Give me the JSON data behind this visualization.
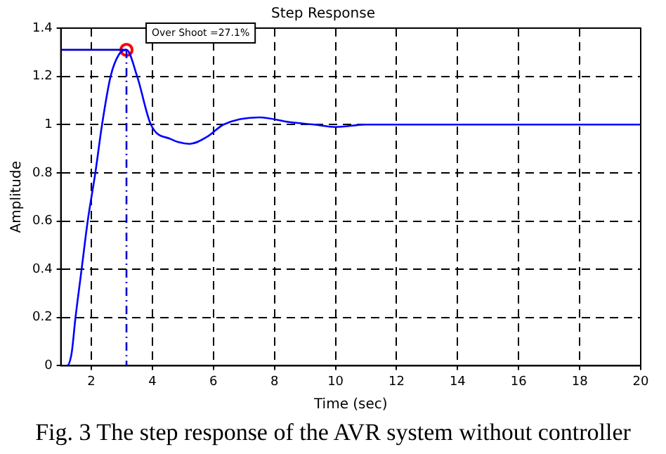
{
  "chart_data": {
    "type": "line",
    "title": "Step Response",
    "xlabel": "Time (sec)",
    "ylabel": "Amplitude",
    "xlim": [
      1,
      20
    ],
    "xticks": [
      2,
      4,
      6,
      8,
      10,
      12,
      14,
      16,
      18,
      20
    ],
    "ylim": [
      0,
      1.4
    ],
    "yticks": [
      0,
      0.2,
      0.4,
      0.6,
      0.8,
      1,
      1.2,
      1.4
    ],
    "grid": true,
    "legend": false,
    "marker": "none",
    "series": [
      {
        "type": "line",
        "color": "#0000ff",
        "line_style": "solid",
        "x": [
          1,
          1.2,
          1.35,
          1.48,
          1.68,
          1.88,
          2.13,
          2.35,
          2.63,
          2.9,
          3.15,
          3.5,
          3.95,
          4.6,
          5.22,
          5.8,
          6.33,
          7.5,
          8.5,
          9.3,
          10,
          11,
          20
        ],
        "values": [
          0,
          0,
          0.05,
          0.2,
          0.4,
          0.6,
          0.8,
          1,
          1.2,
          1.29,
          1.31,
          1.2,
          1,
          0.94,
          0.92,
          0.95,
          1,
          1.03,
          1.01,
          1,
          0.99,
          1,
          1
        ]
      },
      {
        "type": "line",
        "color": "#0000cc",
        "line_style": "solid",
        "x": [
          1,
          3.15
        ],
        "values": [
          1.31,
          1.31
        ]
      },
      {
        "type": "line",
        "color": "#0000cc",
        "line_style": "dashed",
        "x": [
          3.15,
          3.15
        ],
        "values": [
          1.31,
          0
        ]
      },
      {
        "type": "scatter",
        "color": "#ff0000",
        "marker": "circle",
        "x": [
          3.15
        ],
        "values": [
          1.31
        ]
      }
    ],
    "annotations": [
      {
        "text": "Over Shoot =27.1%",
        "x": 3.15,
        "y": 1.31
      },
      "Fig. 3 The step response of the AVR system without controller"
    ]
  }
}
